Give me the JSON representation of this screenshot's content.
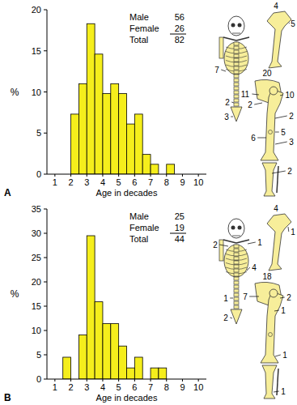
{
  "chart_data": [
    {
      "type": "histogram",
      "title": "A",
      "x_label": "Age in decades",
      "y_label": "%",
      "bins": [
        2,
        2.5,
        3,
        3.5,
        4,
        4.5,
        5,
        5.5,
        6,
        6.5,
        7,
        7.5,
        8,
        8.5
      ],
      "values": [
        7.3,
        11,
        18.3,
        14.6,
        9.8,
        11,
        9.8,
        6.1,
        7.3,
        2.4,
        1.2,
        0,
        1.2
      ],
      "color": "#f5ee1c",
      "xlim": [
        0.5,
        10.5
      ],
      "ylim": [
        0,
        20
      ],
      "xticks": [
        1,
        2,
        3,
        4,
        5,
        6,
        7,
        8,
        9,
        10
      ],
      "yticks": [
        0,
        5,
        10,
        15,
        20
      ],
      "grid": false,
      "annotations": [
        {
          "text": "Male",
          "value": 56
        },
        {
          "text": "Female",
          "value": 26
        },
        {
          "text": "Total",
          "value": 82
        }
      ]
    },
    {
      "type": "histogram",
      "title": "B",
      "x_label": "Age in decades",
      "y_label": "%",
      "bins": [
        1.5,
        2,
        2.5,
        3,
        3.5,
        4,
        4.5,
        5,
        5.5,
        6,
        6.5,
        7,
        7.5,
        8
      ],
      "values": [
        4.5,
        0,
        9.1,
        29.5,
        15.9,
        11.4,
        11.4,
        6.8,
        2.3,
        4.5,
        0,
        2.3,
        2.3
      ],
      "color": "#f5ee1c",
      "xlim": [
        0.5,
        10.5
      ],
      "ylim": [
        0,
        35
      ],
      "xticks": [
        1,
        2,
        3,
        4,
        5,
        6,
        7,
        8,
        9,
        10
      ],
      "yticks": [
        0,
        5,
        10,
        15,
        20,
        25,
        30,
        35
      ],
      "grid": false,
      "annotations": [
        {
          "text": "Male",
          "value": 25
        },
        {
          "text": "Female",
          "value": 19
        },
        {
          "text": "Total",
          "value": 44
        }
      ]
    }
  ],
  "skeletons": [
    {
      "trunk": [
        7,
        2,
        3
      ],
      "arm": [
        4,
        5
      ],
      "leg": [
        20,
        11,
        2,
        10,
        2,
        5,
        6,
        3,
        2
      ]
    },
    {
      "trunk": [
        2,
        1,
        4,
        1,
        2
      ],
      "arm": [
        4,
        1
      ],
      "leg": [
        18,
        7,
        2,
        1,
        1,
        1
      ]
    }
  ]
}
